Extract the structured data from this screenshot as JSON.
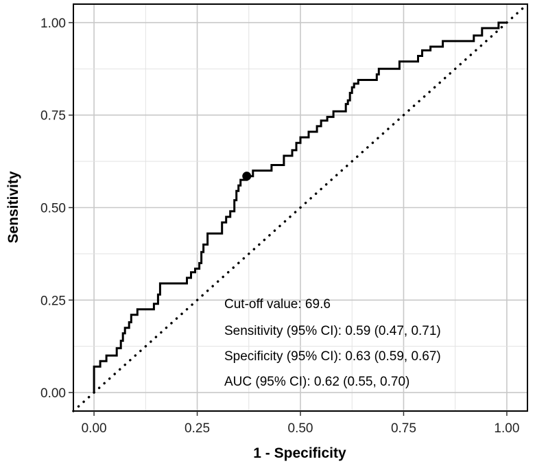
{
  "chart_data": {
    "type": "line",
    "xlabel": "1 - Specificity",
    "ylabel": "Sensitivity",
    "xlim": [
      -0.05,
      1.05
    ],
    "ylim": [
      -0.05,
      1.05
    ],
    "x_ticks": [
      "0.00",
      "0.25",
      "0.50",
      "0.75",
      "1.00"
    ],
    "y_ticks": [
      "0.00",
      "0.25",
      "0.50",
      "0.75",
      "1.00"
    ],
    "x_tick_values": [
      0,
      0.25,
      0.5,
      0.75,
      1
    ],
    "y_tick_values": [
      0,
      0.25,
      0.5,
      0.75,
      1
    ],
    "grid": true,
    "series": [
      {
        "style": "solid",
        "color": "#000000",
        "points": [
          [
            0.0,
            0.0
          ],
          [
            0.0,
            0.07
          ],
          [
            0.015,
            0.07
          ],
          [
            0.015,
            0.085
          ],
          [
            0.03,
            0.085
          ],
          [
            0.03,
            0.1
          ],
          [
            0.045,
            0.1
          ],
          [
            0.055,
            0.1
          ],
          [
            0.055,
            0.12
          ],
          [
            0.065,
            0.12
          ],
          [
            0.065,
            0.14
          ],
          [
            0.07,
            0.14
          ],
          [
            0.07,
            0.16
          ],
          [
            0.075,
            0.16
          ],
          [
            0.075,
            0.175
          ],
          [
            0.085,
            0.175
          ],
          [
            0.085,
            0.19
          ],
          [
            0.09,
            0.19
          ],
          [
            0.09,
            0.21
          ],
          [
            0.105,
            0.21
          ],
          [
            0.105,
            0.225
          ],
          [
            0.145,
            0.225
          ],
          [
            0.145,
            0.24
          ],
          [
            0.155,
            0.24
          ],
          [
            0.155,
            0.265
          ],
          [
            0.16,
            0.265
          ],
          [
            0.16,
            0.295
          ],
          [
            0.225,
            0.295
          ],
          [
            0.225,
            0.31
          ],
          [
            0.235,
            0.31
          ],
          [
            0.235,
            0.325
          ],
          [
            0.245,
            0.325
          ],
          [
            0.245,
            0.335
          ],
          [
            0.255,
            0.335
          ],
          [
            0.255,
            0.35
          ],
          [
            0.26,
            0.35
          ],
          [
            0.26,
            0.38
          ],
          [
            0.265,
            0.38
          ],
          [
            0.265,
            0.4
          ],
          [
            0.275,
            0.4
          ],
          [
            0.275,
            0.43
          ],
          [
            0.31,
            0.43
          ],
          [
            0.31,
            0.46
          ],
          [
            0.32,
            0.46
          ],
          [
            0.32,
            0.475
          ],
          [
            0.33,
            0.475
          ],
          [
            0.33,
            0.49
          ],
          [
            0.34,
            0.49
          ],
          [
            0.34,
            0.52
          ],
          [
            0.345,
            0.52
          ],
          [
            0.345,
            0.545
          ],
          [
            0.35,
            0.545
          ],
          [
            0.35,
            0.56
          ],
          [
            0.355,
            0.56
          ],
          [
            0.355,
            0.575
          ],
          [
            0.37,
            0.575
          ],
          [
            0.37,
            0.585
          ],
          [
            0.385,
            0.585
          ],
          [
            0.385,
            0.6
          ],
          [
            0.43,
            0.6
          ],
          [
            0.43,
            0.615
          ],
          [
            0.46,
            0.615
          ],
          [
            0.46,
            0.64
          ],
          [
            0.48,
            0.64
          ],
          [
            0.48,
            0.655
          ],
          [
            0.49,
            0.655
          ],
          [
            0.49,
            0.675
          ],
          [
            0.5,
            0.675
          ],
          [
            0.5,
            0.69
          ],
          [
            0.52,
            0.69
          ],
          [
            0.52,
            0.705
          ],
          [
            0.54,
            0.705
          ],
          [
            0.54,
            0.72
          ],
          [
            0.55,
            0.72
          ],
          [
            0.55,
            0.735
          ],
          [
            0.565,
            0.735
          ],
          [
            0.565,
            0.745
          ],
          [
            0.58,
            0.745
          ],
          [
            0.58,
            0.76
          ],
          [
            0.61,
            0.76
          ],
          [
            0.61,
            0.78
          ],
          [
            0.615,
            0.78
          ],
          [
            0.615,
            0.79
          ],
          [
            0.62,
            0.79
          ],
          [
            0.62,
            0.81
          ],
          [
            0.625,
            0.81
          ],
          [
            0.625,
            0.825
          ],
          [
            0.63,
            0.825
          ],
          [
            0.63,
            0.835
          ],
          [
            0.64,
            0.835
          ],
          [
            0.64,
            0.845
          ],
          [
            0.685,
            0.845
          ],
          [
            0.685,
            0.86
          ],
          [
            0.69,
            0.86
          ],
          [
            0.69,
            0.875
          ],
          [
            0.74,
            0.875
          ],
          [
            0.74,
            0.895
          ],
          [
            0.785,
            0.895
          ],
          [
            0.785,
            0.91
          ],
          [
            0.795,
            0.91
          ],
          [
            0.795,
            0.925
          ],
          [
            0.815,
            0.925
          ],
          [
            0.815,
            0.935
          ],
          [
            0.845,
            0.935
          ],
          [
            0.845,
            0.95
          ],
          [
            0.92,
            0.95
          ],
          [
            0.92,
            0.965
          ],
          [
            0.94,
            0.965
          ],
          [
            0.94,
            0.985
          ],
          [
            0.98,
            0.985
          ],
          [
            0.98,
            1.0
          ],
          [
            1.0,
            1.0
          ]
        ]
      },
      {
        "style": "dotted",
        "color": "#000000",
        "points": [
          [
            -0.05,
            -0.05
          ],
          [
            1.05,
            1.05
          ]
        ]
      }
    ],
    "marker": {
      "x": 0.37,
      "y": 0.585,
      "color": "#000000"
    },
    "annotations": [
      "Cut-off value: 69.6",
      "Sensitivity (95% CI): 0.59 (0.47, 0.71)",
      "Specificity (95% CI): 0.63 (0.59, 0.67)",
      "AUC (95% CI): 0.62 (0.55, 0.70)"
    ]
  }
}
